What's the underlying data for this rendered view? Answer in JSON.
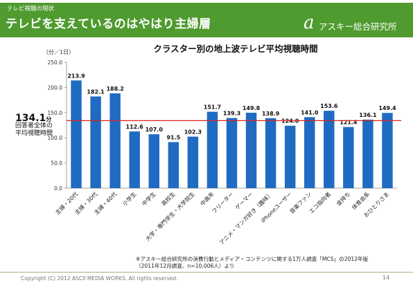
{
  "header": {
    "section": "テレビ視聴の現状",
    "title": "テレビを支えているのはやはり主婦層",
    "logo_mark": "a",
    "logo_text": "アスキー総合研究所",
    "bg_color": "#4f9b2f"
  },
  "average": {
    "value": "134.1",
    "unit": "分",
    "label_line1": "回答者全体の",
    "label_line2": "平均視聴時間",
    "line_color": "#e0201b"
  },
  "chart_data": {
    "type": "bar",
    "title": "クラスター別の地上波テレビ平均視聴時間",
    "ylabel": "（分／1日）",
    "xlabel": "",
    "ylim": [
      0,
      250
    ],
    "yticks": [
      "0.0",
      "50.0",
      "100.0",
      "150.0",
      "200.0",
      "250.0"
    ],
    "bar_color": "#1f6bc2",
    "average_line": 134.1,
    "categories": [
      "主婦・20代",
      "主婦・30代",
      "主婦・40代",
      "小学生",
      "中学生",
      "高校生",
      "大学・専門学生・大学院生",
      "中高年",
      "フリーター",
      "ゲーマー",
      "アニメ・マンガ好き（趣味）",
      "iPhoneユーザー",
      "音楽ファン",
      "エコ指向者",
      "金持ち",
      "体育会系",
      "おひとりさま"
    ],
    "values": [
      213.9,
      182.1,
      188.2,
      112.6,
      107.0,
      91.5,
      102.3,
      151.7,
      139.3,
      149.8,
      138.9,
      124.0,
      141.0,
      153.6,
      121.4,
      136.1,
      149.4
    ],
    "value_labels": [
      "213.9",
      "182.1",
      "188.2",
      "112.6",
      "107.0",
      "91.5",
      "102.3",
      "151.7",
      "139.3",
      "149.8",
      "138.9",
      "124.0",
      "141.0",
      "153.6",
      "121.4",
      "136.1",
      "149.4"
    ]
  },
  "notes": {
    "line1": "※アスキー総合研究所の消費行動とメディア・コンテンツに関する1万人調査「MCS」の2012年版",
    "line2": "（2011年12月調査、n=10,006人）より"
  },
  "footer": {
    "copyright": "Copyright (C) 2012 ASCII MEDIA WORKS. All rights reserved.",
    "page": "14"
  }
}
